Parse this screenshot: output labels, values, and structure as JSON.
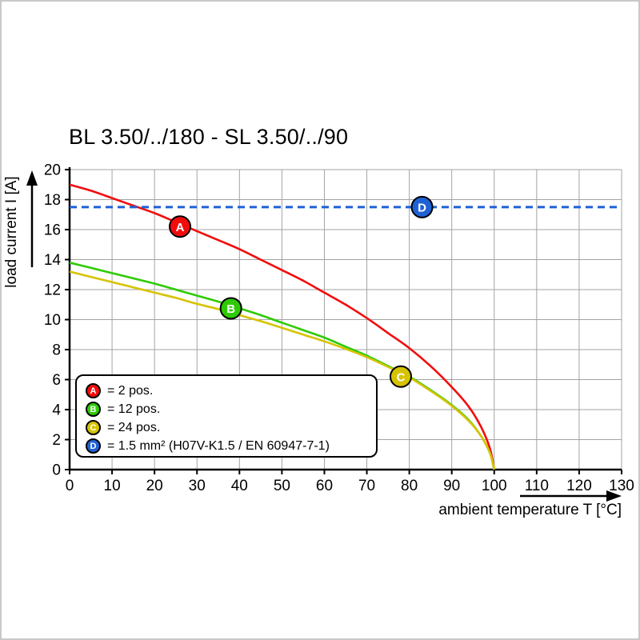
{
  "colors": {
    "red": "#f20d0d",
    "green": "#2ecb05",
    "yellow": "#d6c300",
    "blue": "#1f62d5",
    "grid": "#a3a3a3",
    "axis": "#000000"
  },
  "chart_data": {
    "type": "line",
    "title": "BL 3.50/../180 - SL 3.50/../90",
    "xlabel": "ambient temperature T [°C]",
    "ylabel": "load current I [A]",
    "xlim": [
      0,
      130
    ],
    "ylim": [
      0,
      20
    ],
    "xticks": [
      0,
      10,
      20,
      30,
      40,
      50,
      60,
      70,
      80,
      90,
      100,
      110,
      120,
      130
    ],
    "yticks": [
      0,
      2,
      4,
      6,
      8,
      10,
      12,
      14,
      16,
      18,
      20
    ],
    "grid": true,
    "legend_position": "bottom-left",
    "series": [
      {
        "id": "A",
        "name": "2 pos.",
        "color_key": "red",
        "style": "solid",
        "marker_at": [
          26,
          16.2
        ],
        "points": [
          [
            0,
            19
          ],
          [
            5,
            18.6
          ],
          [
            10,
            18.1
          ],
          [
            15,
            17.6
          ],
          [
            20,
            17.1
          ],
          [
            25,
            16.5
          ],
          [
            30,
            15.9
          ],
          [
            35,
            15.3
          ],
          [
            40,
            14.7
          ],
          [
            45,
            14.0
          ],
          [
            50,
            13.3
          ],
          [
            55,
            12.6
          ],
          [
            60,
            11.8
          ],
          [
            65,
            11.0
          ],
          [
            70,
            10.1
          ],
          [
            75,
            9.1
          ],
          [
            80,
            8.1
          ],
          [
            85,
            6.9
          ],
          [
            90,
            5.5
          ],
          [
            94,
            4.2
          ],
          [
            97,
            2.8
          ],
          [
            99,
            1.4
          ],
          [
            100,
            0
          ]
        ]
      },
      {
        "id": "B",
        "name": "12 pos.",
        "color_key": "green",
        "style": "solid",
        "marker_at": [
          38,
          10.75
        ],
        "points": [
          [
            0,
            13.8
          ],
          [
            5,
            13.45
          ],
          [
            10,
            13.1
          ],
          [
            15,
            12.75
          ],
          [
            20,
            12.4
          ],
          [
            25,
            12.0
          ],
          [
            30,
            11.6
          ],
          [
            35,
            11.2
          ],
          [
            40,
            10.75
          ],
          [
            45,
            10.3
          ],
          [
            50,
            9.8
          ],
          [
            55,
            9.3
          ],
          [
            60,
            8.8
          ],
          [
            65,
            8.2
          ],
          [
            70,
            7.6
          ],
          [
            75,
            6.9
          ],
          [
            80,
            6.2
          ],
          [
            85,
            5.3
          ],
          [
            90,
            4.3
          ],
          [
            94,
            3.3
          ],
          [
            97,
            2.2
          ],
          [
            99,
            1.1
          ],
          [
            100,
            0
          ]
        ]
      },
      {
        "id": "C",
        "name": "24 pos.",
        "color_key": "yellow",
        "style": "solid",
        "marker_at": [
          78,
          6.2
        ],
        "points": [
          [
            0,
            13.2
          ],
          [
            5,
            12.85
          ],
          [
            10,
            12.5
          ],
          [
            15,
            12.15
          ],
          [
            20,
            11.8
          ],
          [
            25,
            11.45
          ],
          [
            30,
            11.05
          ],
          [
            35,
            10.7
          ],
          [
            40,
            10.3
          ],
          [
            45,
            9.9
          ],
          [
            50,
            9.45
          ],
          [
            55,
            9.0
          ],
          [
            60,
            8.55
          ],
          [
            65,
            8.05
          ],
          [
            70,
            7.5
          ],
          [
            75,
            6.85
          ],
          [
            80,
            6.15
          ],
          [
            85,
            5.25
          ],
          [
            90,
            4.25
          ],
          [
            94,
            3.25
          ],
          [
            97,
            2.2
          ],
          [
            99,
            1.1
          ],
          [
            100,
            0
          ]
        ]
      },
      {
        "id": "D",
        "name": "1.5 mm² (H07V-K1.5 / EN 60947-7-1)",
        "color_key": "blue",
        "style": "dashed",
        "marker_at": [
          83,
          17.5
        ],
        "points": [
          [
            0,
            17.5
          ],
          [
            130,
            17.5
          ]
        ]
      }
    ],
    "legend": [
      {
        "id": "A",
        "text": "= 2 pos."
      },
      {
        "id": "B",
        "text": "= 12 pos."
      },
      {
        "id": "C",
        "text": "= 24 pos."
      },
      {
        "id": "D",
        "text": "= 1.5 mm² (H07V-K1.5 / EN 60947-7-1)"
      }
    ]
  }
}
